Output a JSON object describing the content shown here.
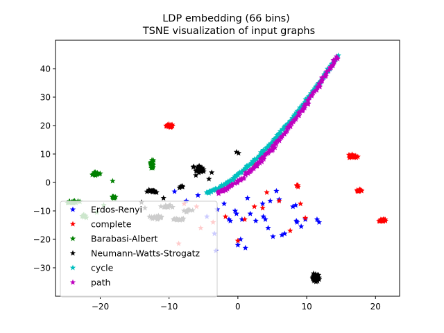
{
  "chart_data": {
    "type": "scatter",
    "title": "LDP embedding (66 bins)",
    "subtitle": "TSNE visualization of input graphs",
    "xlabel": "",
    "ylabel": "",
    "xlim": [
      -26.5,
      23.5
    ],
    "ylim": [
      -40,
      50
    ],
    "x_ticks": [
      -20,
      -10,
      0,
      10,
      20
    ],
    "y_ticks": [
      -30,
      -20,
      -10,
      0,
      10,
      20,
      30,
      40
    ],
    "x_tick_labels": [
      "−20",
      "−10",
      "0",
      "10",
      "20"
    ],
    "y_tick_labels": [
      "−30",
      "−20",
      "−10",
      "0",
      "10",
      "20",
      "30",
      "40"
    ],
    "grid": false,
    "legend_position": "lower-left",
    "marker": "star",
    "series": [
      {
        "name": "Erdos-Renyi",
        "color": "#0000ff",
        "points": [
          [
            -9.2,
            -3.2
          ],
          [
            -7.5,
            -6.5
          ],
          [
            -5.8,
            -4.5
          ],
          [
            -4.5,
            -12
          ],
          [
            -3.4,
            -18
          ],
          [
            -3.2,
            -24
          ],
          [
            -3,
            -9.5
          ],
          [
            -2,
            -7.5
          ],
          [
            -1.3,
            -13
          ],
          [
            -1.1,
            -13.5
          ],
          [
            -0.4,
            -10
          ],
          [
            -0.2,
            -11
          ],
          [
            0,
            -22
          ],
          [
            0.4,
            -20
          ],
          [
            0.6,
            -13
          ],
          [
            1.1,
            -23
          ],
          [
            1.4,
            -5.5
          ],
          [
            1.8,
            -11
          ],
          [
            2.6,
            -13.5
          ],
          [
            3.6,
            -7.5
          ],
          [
            3.7,
            -12
          ],
          [
            4,
            -13
          ],
          [
            4.4,
            -16
          ],
          [
            4.7,
            -6.5
          ],
          [
            5.1,
            -19
          ],
          [
            5.6,
            -3
          ],
          [
            6,
            -6
          ],
          [
            6.4,
            -18.5
          ],
          [
            6.8,
            -18
          ],
          [
            8,
            -8.5
          ],
          [
            8.5,
            -13.5
          ],
          [
            8.6,
            -14
          ],
          [
            8.4,
            -8
          ],
          [
            9.2,
            -15.5
          ],
          [
            9.8,
            -13
          ],
          [
            11.5,
            -13
          ],
          [
            11.8,
            -14
          ]
        ]
      },
      {
        "name": "complete",
        "color": "#ff0000",
        "clusters": [
          {
            "cx": -10,
            "cy": 20,
            "rx": 0.8,
            "ry": 0.7,
            "n": 26
          },
          {
            "cx": 16.8,
            "cy": 9.2,
            "rx": 0.9,
            "ry": 0.8,
            "n": 26
          },
          {
            "cx": 17.6,
            "cy": -2.8,
            "rx": 0.7,
            "ry": 0.7,
            "n": 16
          },
          {
            "cx": 21,
            "cy": -13.3,
            "rx": 0.7,
            "ry": 0.7,
            "n": 18
          },
          {
            "cx": 8.7,
            "cy": -1.3,
            "rx": 0.3,
            "ry": 0.5,
            "n": 6
          }
        ],
        "points": [
          [
            -8.6,
            -21.5
          ],
          [
            -7.8,
            -7.5
          ],
          [
            -5.4,
            -16
          ],
          [
            -6,
            -8.5
          ],
          [
            -3.6,
            -14
          ],
          [
            -1.8,
            -12
          ],
          [
            0,
            -20.5
          ],
          [
            1,
            -13
          ],
          [
            2.4,
            -8.5
          ],
          [
            3.6,
            -9
          ],
          [
            4.2,
            -3.5
          ],
          [
            5,
            12.5
          ],
          [
            6,
            -6.5
          ],
          [
            7.6,
            -17
          ],
          [
            9.1,
            -7.5
          ],
          [
            9.8,
            -12.5
          ],
          [
            2.2,
            6.5
          ]
        ]
      },
      {
        "name": "Barabasi-Albert",
        "color": "#008000",
        "clusters": [
          {
            "cx": -20.7,
            "cy": 3,
            "rx": 0.8,
            "ry": 0.9,
            "n": 22
          },
          {
            "cx": -12.5,
            "cy": 6.5,
            "rx": 0.4,
            "ry": 2.2,
            "n": 22
          },
          {
            "cx": -18,
            "cy": -5.2,
            "rx": 0.5,
            "ry": 0.6,
            "n": 12
          },
          {
            "cx": -23.8,
            "cy": -7,
            "rx": 1.4,
            "ry": 0.8,
            "n": 24
          },
          {
            "cx": -22.5,
            "cy": -12,
            "rx": 0.6,
            "ry": 0.7,
            "n": 8
          }
        ],
        "points": [
          [
            -18.2,
            0.5
          ],
          [
            -20.5,
            -10.5
          ],
          [
            -19.5,
            -8
          ]
        ]
      },
      {
        "name": "Neumann-Watts-Strogatz",
        "color": "#000000",
        "clusters": [
          {
            "cx": 11.3,
            "cy": -33.5,
            "rx": 0.6,
            "ry": 2.3,
            "n": 45
          },
          {
            "cx": -5.8,
            "cy": 5,
            "rx": 1.2,
            "ry": 2.2,
            "n": 28
          },
          {
            "cx": -12.5,
            "cy": -3,
            "rx": 1,
            "ry": 0.8,
            "n": 16
          },
          {
            "cx": -10.2,
            "cy": -8.5,
            "rx": 1.2,
            "ry": 0.8,
            "n": 16
          },
          {
            "cx": -12,
            "cy": -12.5,
            "rx": 1.5,
            "ry": 1,
            "n": 20
          },
          {
            "cx": -8.5,
            "cy": -13,
            "rx": 1.3,
            "ry": 0.6,
            "n": 14
          },
          {
            "cx": -7.2,
            "cy": -10,
            "rx": 0.8,
            "ry": 0.7,
            "n": 10
          },
          {
            "cx": -8.2,
            "cy": -1.5,
            "rx": 0.4,
            "ry": 0.5,
            "n": 6
          }
        ],
        "points": [
          [
            -0.2,
            10.7
          ],
          [
            0.1,
            10.3
          ],
          [
            -3.8,
            3.5
          ],
          [
            2.8,
            5.8
          ],
          [
            -4.2,
            1.2
          ],
          [
            -14,
            -7
          ],
          [
            -10.8,
            -5.5
          ],
          [
            -6.1,
            2.5
          ],
          [
            -13.5,
            -9
          ]
        ]
      },
      {
        "name": "cycle",
        "color": "#00bfbf",
        "curve": {
          "x_start": -4.5,
          "x_end": 14.5,
          "base_y": -3.5,
          "top_y": 44.5,
          "power": 2.6,
          "n": 180,
          "jitter": 0.55
        }
      },
      {
        "name": "path",
        "color": "#bf00bf",
        "curve": {
          "x_start": -3,
          "x_end": 14.5,
          "base_y": -3.5,
          "top_y": 44.5,
          "power": 2.6,
          "n": 160,
          "jitter": 0.75
        }
      }
    ]
  }
}
